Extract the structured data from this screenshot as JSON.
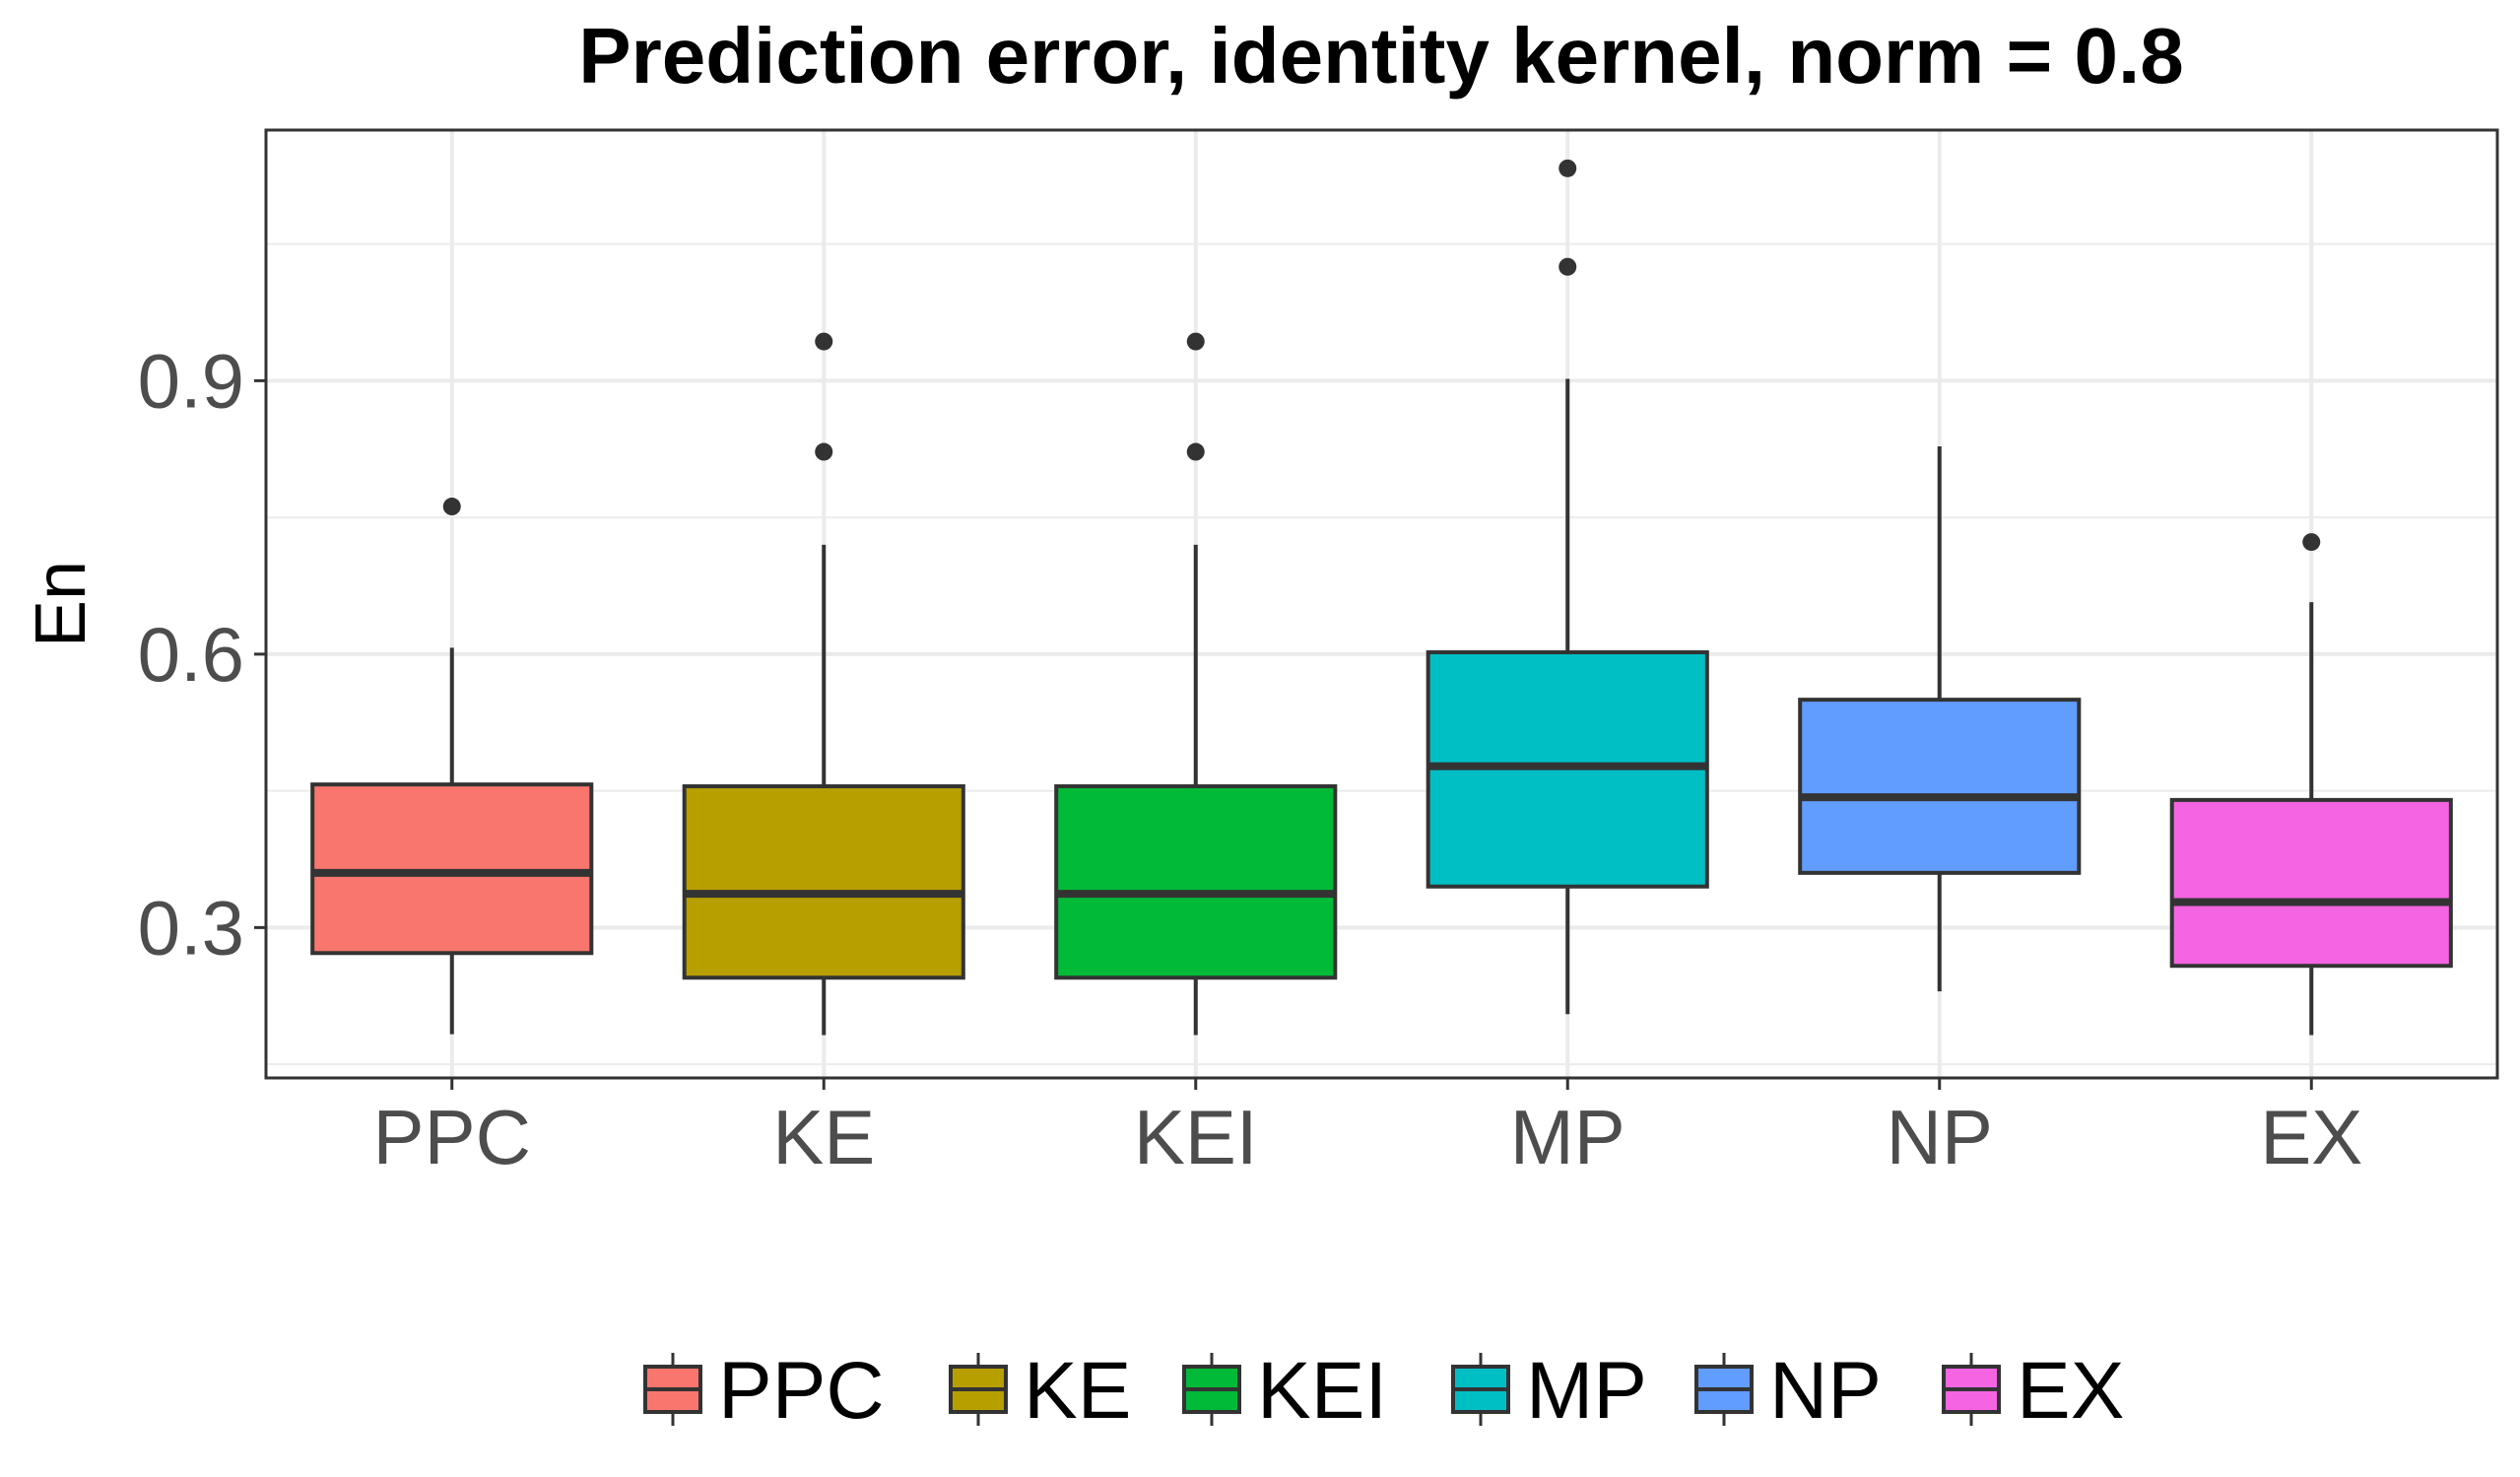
{
  "chart_data": {
    "type": "boxplot",
    "title": "Prediction error, identity kernel, norm = 0.8",
    "xlabel": "",
    "ylabel": "En",
    "ylim": [
      0.135,
      1.175
    ],
    "yticks": [
      0.3,
      0.6,
      0.9
    ],
    "ytick_labels": [
      "0.3",
      "0.6",
      "0.9"
    ],
    "grid": true,
    "legend_position": "bottom",
    "categories": [
      "PPC",
      "KE",
      "KEI",
      "MP",
      "NP",
      "EX"
    ],
    "colors": [
      "#F8766D",
      "#B79F00",
      "#00BA38",
      "#00BFC4",
      "#619CFF",
      "#F564E3"
    ],
    "series": [
      {
        "name": "PPC",
        "min": 0.183,
        "q1": 0.272,
        "median": 0.36,
        "q3": 0.457,
        "max": 0.607,
        "outliers": [
          0.762
        ]
      },
      {
        "name": "KE",
        "min": 0.182,
        "q1": 0.245,
        "median": 0.337,
        "q3": 0.455,
        "max": 0.72,
        "outliers": [
          0.822,
          0.943
        ]
      },
      {
        "name": "KEI",
        "min": 0.182,
        "q1": 0.245,
        "median": 0.337,
        "q3": 0.455,
        "max": 0.72,
        "outliers": [
          0.822,
          0.943
        ]
      },
      {
        "name": "MP",
        "min": 0.205,
        "q1": 0.345,
        "median": 0.477,
        "q3": 0.602,
        "max": 0.902,
        "outliers": [
          1.025,
          1.133
        ]
      },
      {
        "name": "NP",
        "min": 0.23,
        "q1": 0.36,
        "median": 0.443,
        "q3": 0.55,
        "max": 0.828,
        "outliers": []
      },
      {
        "name": "EX",
        "min": 0.182,
        "q1": 0.258,
        "median": 0.328,
        "q3": 0.44,
        "max": 0.657,
        "outliers": [
          0.723
        ]
      }
    ]
  }
}
